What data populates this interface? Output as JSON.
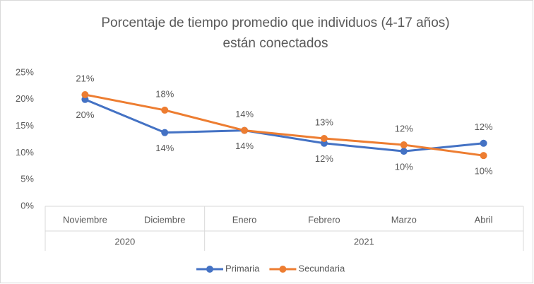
{
  "chart_data": {
    "type": "line",
    "title": [
      "Porcentaje de tiempo promedio que individuos (4-17 años)",
      "están conectados"
    ],
    "categories": [
      "Noviembre",
      "Diciembre",
      "Enero",
      "Febrero",
      "Marzo",
      "Abril"
    ],
    "x_groups": [
      "2020",
      "2020",
      "2021",
      "2021",
      "2021",
      "2021"
    ],
    "series": [
      {
        "name": "Primaria",
        "color": "#4472c4",
        "values": [
          20.0,
          13.8,
          14.2,
          11.8,
          10.3,
          11.8
        ],
        "value_labels": [
          "20%",
          "14%",
          "14%",
          "12%",
          "10%",
          "12%"
        ]
      },
      {
        "name": "Secundaria",
        "color": "#ed7d31",
        "values": [
          20.9,
          18.0,
          14.2,
          12.7,
          11.5,
          9.5
        ],
        "value_labels": [
          "21%",
          "18%",
          "14%",
          "13%",
          "12%",
          "10%"
        ]
      }
    ],
    "ylim": [
      0,
      25
    ],
    "yticks": [
      {
        "value": 0,
        "label": "0%"
      },
      {
        "value": 5,
        "label": "5%"
      },
      {
        "value": 10,
        "label": "10%"
      },
      {
        "value": 15,
        "label": "15%"
      },
      {
        "value": 20,
        "label": "20%"
      },
      {
        "value": 25,
        "label": "25%"
      }
    ],
    "grid": false,
    "legend": "bottom"
  }
}
